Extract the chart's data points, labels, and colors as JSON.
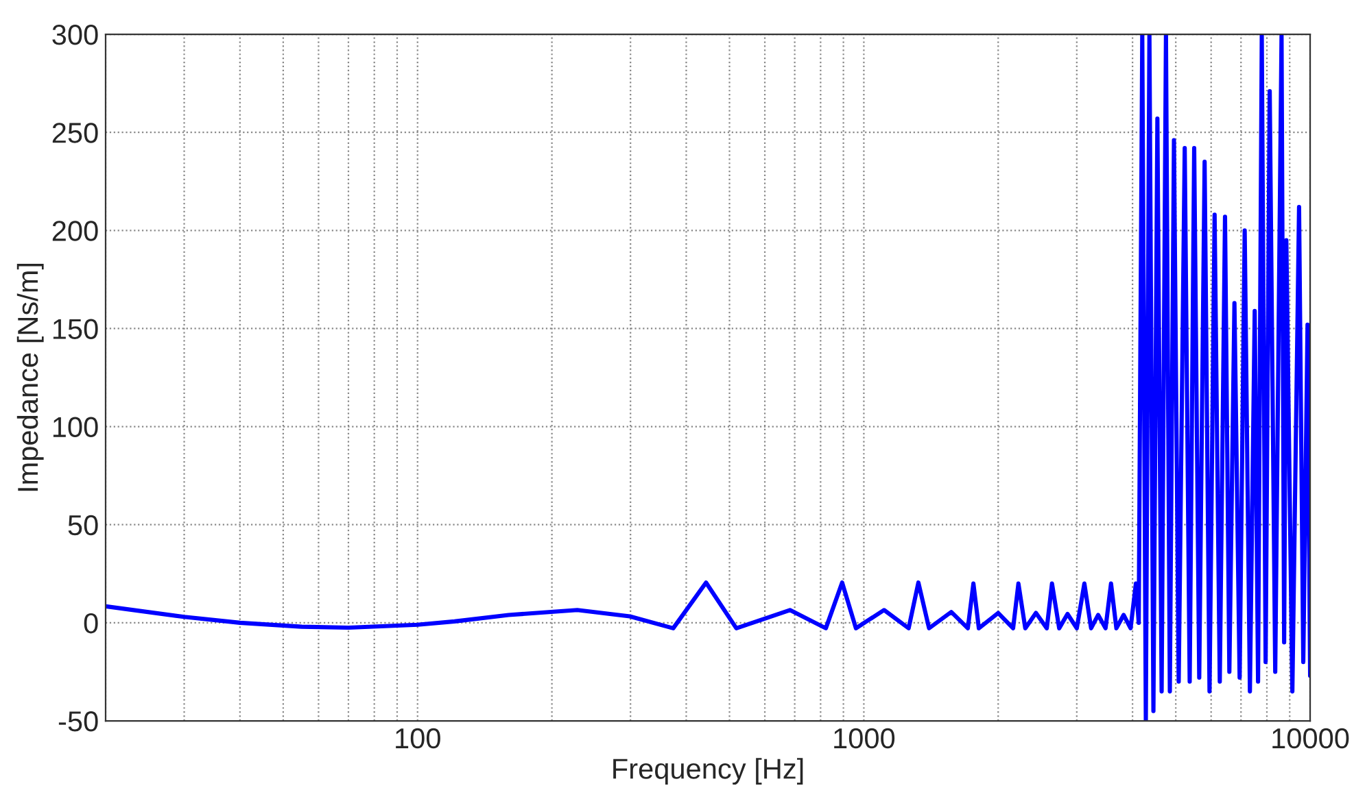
{
  "chart_data": {
    "type": "line",
    "xlabel": "Frequency [Hz]",
    "ylabel": "Impedance [Ns/m]",
    "log": "x",
    "xlim": [
      20,
      10000
    ],
    "ylim": [
      -50,
      300
    ],
    "xticks": [
      {
        "value": 20,
        "label": null
      },
      {
        "value": 30,
        "label": null
      },
      {
        "value": 40,
        "label": null
      },
      {
        "value": 50,
        "label": null
      },
      {
        "value": 60,
        "label": null
      },
      {
        "value": 70,
        "label": null
      },
      {
        "value": 80,
        "label": null
      },
      {
        "value": 90,
        "label": null
      },
      100,
      {
        "value": 200,
        "label": null
      },
      {
        "value": 300,
        "label": null
      },
      {
        "value": 400,
        "label": null
      },
      {
        "value": 500,
        "label": null
      },
      {
        "value": 600,
        "label": null
      },
      {
        "value": 700,
        "label": null
      },
      {
        "value": 800,
        "label": null
      },
      {
        "value": 900,
        "label": null
      },
      1000,
      {
        "value": 2000,
        "label": null
      },
      {
        "value": 3000,
        "label": null
      },
      {
        "value": 4000,
        "label": null
      },
      {
        "value": 5000,
        "label": null
      },
      {
        "value": 6000,
        "label": null
      },
      {
        "value": 7000,
        "label": null
      },
      {
        "value": 8000,
        "label": null
      },
      {
        "value": 9000,
        "label": null
      },
      10000
    ],
    "yticks": [
      -50,
      0,
      50,
      100,
      150,
      200,
      250,
      300
    ],
    "grid": true,
    "line_style": "solid",
    "marker": "none",
    "series": [
      {
        "color": "#0000ff",
        "x": [
          20,
          30,
          40,
          55,
          70,
          100,
          121,
          160,
          228,
          299,
          374,
          443,
          518,
          683,
          822,
          894,
          960,
          1110,
          1260,
          1325,
          1400,
          1570,
          1710,
          1760,
          1810,
          2000,
          2160,
          2220,
          2300,
          2430,
          2570,
          2640,
          2740,
          2860,
          3000,
          3120,
          3230,
          3350,
          3480,
          3580,
          3680,
          3820,
          3960,
          4070,
          4130,
          4206,
          4284,
          4364,
          4455,
          4547,
          4648,
          4753,
          4849,
          4953,
          5076,
          5236,
          5372,
          5498,
          5643,
          5802,
          5951,
          6109,
          6274,
          6446,
          6592,
          6767,
          6951,
          7135,
          7329,
          7513,
          7644,
          7792,
          7948,
          8118,
          8352,
          8629,
          8745,
          8844,
          9124,
          9445,
          9653,
          9867,
          10000
        ],
        "values": [
          8.4,
          3,
          0,
          -2,
          -2.5,
          -1,
          0.7,
          4,
          6.5,
          3.3,
          -2.8,
          20.5,
          -2.8,
          6.5,
          -2.8,
          20.5,
          -2.8,
          6.5,
          -2.8,
          20.5,
          -2.8,
          5.5,
          -2.8,
          20,
          -2.8,
          5,
          -2.8,
          20,
          -2.8,
          5,
          -2.8,
          20,
          -2.8,
          4.5,
          -2.8,
          20,
          -2.8,
          4,
          -2.8,
          20,
          -2.8,
          4,
          -2.8,
          20,
          0,
          300,
          -50,
          300,
          -45,
          257,
          -35,
          300,
          -35,
          246,
          -30,
          242,
          -30,
          242,
          -28,
          235,
          -35,
          208,
          -30,
          207,
          -25,
          163,
          -28,
          200,
          -35,
          159,
          -30,
          300,
          -20,
          271,
          -25,
          300,
          -10,
          195,
          -35,
          212,
          -20,
          152,
          -27
        ]
      }
    ]
  }
}
